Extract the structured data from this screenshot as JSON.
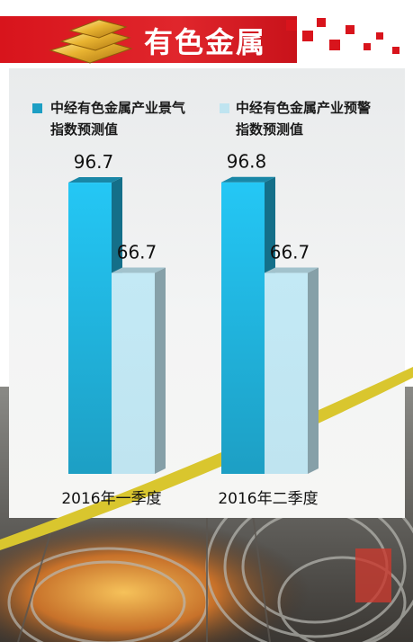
{
  "header": {
    "title": "有色金属",
    "gold_icon": "gold-bars-icon"
  },
  "colors": {
    "header_red": "#d8141c",
    "series1": "#1d9fc4",
    "series2": "#bfe4f0",
    "curve_yellow": "#d9c62e"
  },
  "chart_data": {
    "type": "bar",
    "categories": [
      "2016年一季度",
      "2016年二季度"
    ],
    "series": [
      {
        "name": "中经有色金属产业景气\n指数预测值",
        "values": [
          96.7,
          96.8
        ]
      },
      {
        "name": "中经有色金属产业预警\n指数预测值",
        "values": [
          66.7,
          66.7
        ]
      }
    ],
    "data_labels": [
      [
        "96.7",
        "96.8"
      ],
      [
        "66.7",
        "66.7"
      ]
    ],
    "ylim": [
      0,
      100
    ],
    "legend_position": "top",
    "grid": false
  }
}
